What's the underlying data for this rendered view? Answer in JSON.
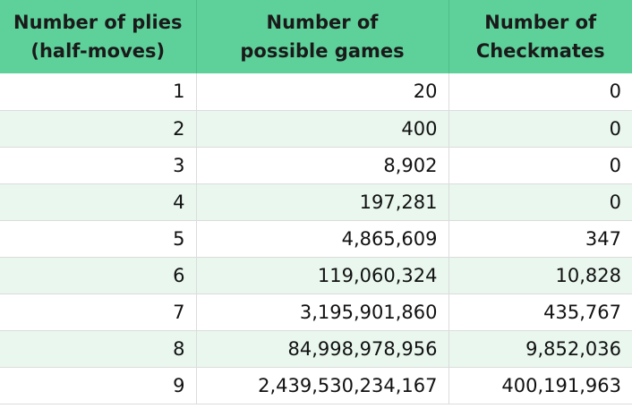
{
  "table": {
    "columns": [
      {
        "line1": "Number of plies",
        "line2": "(half-moves)"
      },
      {
        "line1": "Number of",
        "line2": "possible games"
      },
      {
        "line1": "Number of",
        "line2": "Checkmates"
      }
    ],
    "rows": [
      {
        "plies": "1",
        "games": "20",
        "checkmates": "0"
      },
      {
        "plies": "2",
        "games": "400",
        "checkmates": "0"
      },
      {
        "plies": "3",
        "games": "8,902",
        "checkmates": "0"
      },
      {
        "plies": "4",
        "games": "197,281",
        "checkmates": "0"
      },
      {
        "plies": "5",
        "games": "4,865,609",
        "checkmates": "347"
      },
      {
        "plies": "6",
        "games": "119,060,324",
        "checkmates": "10,828"
      },
      {
        "plies": "7",
        "games": "3,195,901,860",
        "checkmates": "435,767"
      },
      {
        "plies": "8",
        "games": "84,998,978,956",
        "checkmates": "9,852,036"
      },
      {
        "plies": "9",
        "games": "2,439,530,234,167",
        "checkmates": "400,191,963"
      }
    ],
    "colors": {
      "header_bg": "#5ed19a",
      "stripe_bg": "#e9f7ee",
      "grid": "#dcdcdc"
    }
  }
}
